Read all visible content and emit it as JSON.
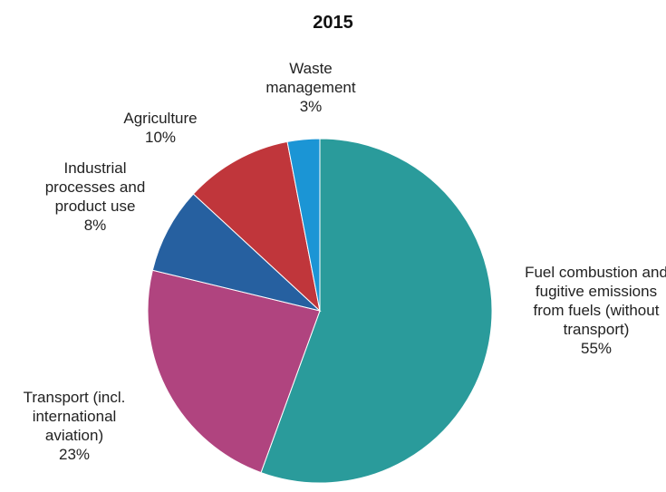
{
  "chart_data": {
    "type": "pie",
    "title": "2015",
    "categories": [
      "Fuel combustion and fugitive emissions from fuels (without transport)",
      "Transport  (incl. international aviation)",
      "Industrial processes and product use",
      "Agriculture",
      "Waste management"
    ],
    "values": [
      55,
      23,
      8,
      10,
      3
    ],
    "value_labels": [
      "55%",
      "23%",
      "8%",
      "10%",
      "3%"
    ],
    "colors": [
      "#2a9b9b",
      "#b0447f",
      "#2660a0",
      "#c0363b",
      "#1b95d5"
    ]
  }
}
